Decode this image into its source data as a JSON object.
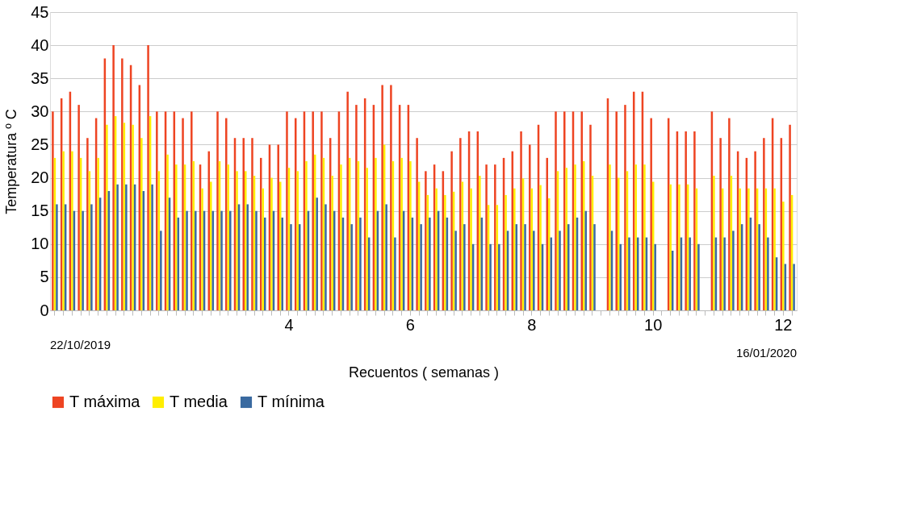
{
  "chart_data": {
    "type": "bar",
    "xlabel": "Recuentos ( semanas )",
    "ylabel": "Temperatura º C",
    "categories": [
      null,
      null,
      null,
      null,
      null,
      null,
      null,
      null,
      null,
      null,
      null,
      null,
      null,
      null,
      null,
      null,
      null,
      null,
      null,
      null,
      null,
      null,
      null,
      null,
      null,
      null,
      null,
      "4",
      null,
      null,
      null,
      null,
      null,
      null,
      null,
      null,
      null,
      null,
      null,
      null,
      null,
      "6",
      null,
      null,
      null,
      null,
      null,
      null,
      null,
      null,
      null,
      null,
      null,
      null,
      null,
      "8",
      null,
      null,
      null,
      null,
      null,
      null,
      null,
      null,
      null,
      null,
      null,
      null,
      null,
      "10",
      null,
      null,
      null,
      null,
      null,
      null,
      null,
      null,
      null,
      null,
      null,
      null,
      null,
      null,
      "12",
      null
    ],
    "series": [
      {
        "name": "T máxima",
        "color": "#ee4422",
        "values": [
          30,
          32,
          33,
          31,
          26,
          29,
          38,
          40,
          38,
          37,
          34,
          40,
          30,
          30,
          30,
          29,
          30,
          22,
          24,
          30,
          29,
          26,
          26,
          26,
          23,
          25,
          25,
          30,
          29,
          30,
          30,
          30,
          26,
          30,
          33,
          31,
          32,
          31,
          34,
          34,
          31,
          31,
          26,
          21,
          22,
          21,
          24,
          26,
          27,
          27,
          22,
          22,
          23,
          24,
          27,
          25,
          28,
          23,
          30,
          30,
          30,
          30,
          28,
          null,
          32,
          30,
          31,
          33,
          33,
          29,
          null,
          29,
          27,
          27,
          27,
          null,
          30,
          26,
          29,
          24,
          23,
          24,
          26,
          29,
          26,
          28
        ]
      },
      {
        "name": "T media",
        "color": "#ffee00",
        "values": [
          23,
          24,
          24,
          23,
          21,
          23,
          28,
          29.3,
          28.3,
          28,
          26,
          29.3,
          21,
          23.5,
          22,
          22,
          22.5,
          18.4,
          19.4,
          22.5,
          22,
          21,
          21,
          20.3,
          18.4,
          20,
          19.4,
          21.5,
          21,
          22.5,
          23.5,
          23,
          20.3,
          22,
          23,
          22.5,
          21.5,
          23,
          25,
          22.5,
          23,
          22.5,
          19.4,
          17.4,
          18.4,
          17.4,
          17.9,
          19.4,
          18.4,
          20.3,
          15.9,
          15.9,
          17.4,
          18.4,
          19.9,
          18.4,
          18.9,
          16.9,
          21,
          21.5,
          22,
          22.5,
          20.3,
          null,
          22,
          20,
          21,
          22,
          22,
          19.4,
          null,
          19,
          19,
          19,
          18.4,
          null,
          20.3,
          18.4,
          20.3,
          18.4,
          18.4,
          18.4,
          18.4,
          18.4,
          16.4,
          17.4
        ]
      },
      {
        "name": "T mínima",
        "color": "#3a6aa0",
        "values": [
          16,
          16,
          15,
          15,
          16,
          17,
          18,
          19,
          19,
          19,
          18,
          19,
          12,
          17,
          14,
          15,
          15,
          15,
          15,
          15,
          15,
          16,
          16,
          15,
          14,
          15,
          14,
          13,
          13,
          15,
          17,
          16,
          15,
          14,
          13,
          14,
          11,
          15,
          16,
          11,
          15,
          14,
          13,
          14,
          15,
          14,
          12,
          13,
          10,
          14,
          10,
          10,
          12,
          13,
          13,
          12,
          10,
          11,
          12,
          13,
          14,
          15,
          13,
          null,
          12,
          10,
          11,
          11,
          11,
          10,
          null,
          9,
          11,
          11,
          10,
          null,
          11,
          11,
          12,
          13,
          14,
          13,
          11,
          8,
          7,
          7
        ]
      }
    ],
    "ylim": [
      0,
      45
    ],
    "yticks": [
      0,
      5,
      10,
      15,
      20,
      25,
      30,
      35,
      40,
      45
    ],
    "grid": "y",
    "legend": "bottom",
    "annotations": [
      "22/10/2019",
      "16/01/2020"
    ]
  }
}
